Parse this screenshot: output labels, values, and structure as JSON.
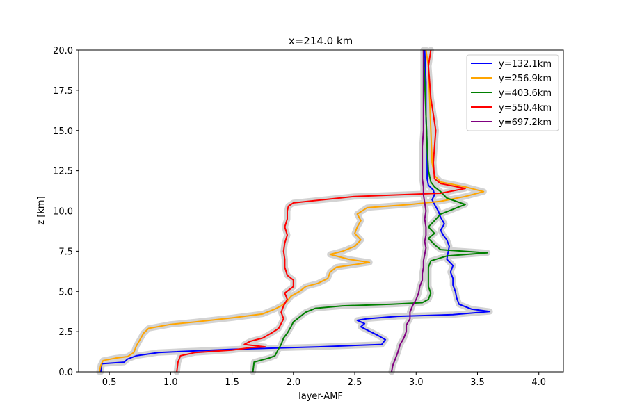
{
  "chart_data": {
    "type": "line",
    "title": "x=214.0 km",
    "xlabel": "layer-AMF",
    "ylabel": "z [km]",
    "xlim": [
      0.25,
      4.2
    ],
    "ylim": [
      0,
      20
    ],
    "xticks": [
      0.5,
      1.0,
      1.5,
      2.0,
      2.5,
      3.0,
      3.5,
      4.0
    ],
    "xtick_labels": [
      "0.5",
      "1.0",
      "1.5",
      "2.0",
      "2.5",
      "3.0",
      "3.5",
      "4.0"
    ],
    "yticks": [
      0,
      2.5,
      5,
      7.5,
      10,
      12.5,
      15,
      17.5,
      20
    ],
    "ytick_labels": [
      "0.0",
      "2.5",
      "5.0",
      "7.5",
      "10.0",
      "12.5",
      "15.0",
      "17.5",
      "20.0"
    ],
    "grid": false,
    "legend_position": "upper right",
    "uncertainty_band_color": "#d3d3d3",
    "series": [
      {
        "name": "y=132.1km",
        "color": "#0000ff",
        "points": [
          [
            0.43,
            0
          ],
          [
            0.44,
            0.5
          ],
          [
            0.62,
            0.6
          ],
          [
            0.65,
            0.8
          ],
          [
            0.72,
            1.0
          ],
          [
            0.9,
            1.2
          ],
          [
            1.5,
            1.4
          ],
          [
            2.2,
            1.55
          ],
          [
            2.72,
            1.7
          ],
          [
            2.75,
            2.0
          ],
          [
            2.68,
            2.3
          ],
          [
            2.6,
            2.6
          ],
          [
            2.55,
            2.8
          ],
          [
            2.58,
            3.0
          ],
          [
            2.52,
            3.2
          ],
          [
            2.6,
            3.3
          ],
          [
            2.85,
            3.45
          ],
          [
            3.3,
            3.55
          ],
          [
            3.6,
            3.75
          ],
          [
            3.45,
            3.9
          ],
          [
            3.35,
            4.2
          ],
          [
            3.33,
            4.6
          ],
          [
            3.32,
            5.0
          ],
          [
            3.3,
            5.4
          ],
          [
            3.3,
            5.8
          ],
          [
            3.28,
            6.2
          ],
          [
            3.3,
            6.6
          ],
          [
            3.25,
            7.0
          ],
          [
            3.26,
            7.4
          ],
          [
            3.27,
            7.8
          ],
          [
            3.25,
            8.2
          ],
          [
            3.22,
            8.5
          ],
          [
            3.2,
            8.8
          ],
          [
            3.23,
            9.2
          ],
          [
            3.2,
            9.6
          ],
          [
            3.18,
            10.0
          ],
          [
            3.15,
            10.4
          ],
          [
            3.13,
            10.7
          ],
          [
            3.15,
            11.0
          ],
          [
            3.14,
            11.3
          ],
          [
            3.1,
            11.6
          ],
          [
            3.09,
            12.0
          ],
          [
            3.09,
            14.0
          ],
          [
            3.08,
            16.0
          ],
          [
            3.08,
            18.0
          ],
          [
            3.07,
            20.0
          ]
        ]
      },
      {
        "name": "y=256.9km",
        "color": "#ffa500",
        "points": [
          [
            0.42,
            0
          ],
          [
            0.43,
            0.4
          ],
          [
            0.45,
            0.7
          ],
          [
            0.55,
            0.85
          ],
          [
            0.65,
            0.95
          ],
          [
            0.7,
            1.2
          ],
          [
            0.72,
            1.6
          ],
          [
            0.75,
            2.0
          ],
          [
            0.78,
            2.4
          ],
          [
            0.82,
            2.7
          ],
          [
            1.0,
            2.95
          ],
          [
            1.2,
            3.1
          ],
          [
            1.5,
            3.35
          ],
          [
            1.75,
            3.6
          ],
          [
            1.85,
            3.9
          ],
          [
            1.9,
            4.1
          ],
          [
            1.95,
            4.4
          ],
          [
            1.98,
            4.7
          ],
          [
            2.05,
            5.0
          ],
          [
            2.1,
            5.3
          ],
          [
            2.2,
            5.5
          ],
          [
            2.28,
            5.8
          ],
          [
            2.3,
            6.2
          ],
          [
            2.35,
            6.5
          ],
          [
            2.62,
            6.8
          ],
          [
            2.45,
            7.0
          ],
          [
            2.3,
            7.3
          ],
          [
            2.4,
            7.5
          ],
          [
            2.5,
            7.8
          ],
          [
            2.55,
            8.2
          ],
          [
            2.5,
            8.6
          ],
          [
            2.52,
            9.0
          ],
          [
            2.55,
            9.4
          ],
          [
            2.52,
            9.8
          ],
          [
            2.6,
            10.2
          ],
          [
            2.95,
            10.4
          ],
          [
            3.2,
            10.6
          ],
          [
            3.4,
            10.9
          ],
          [
            3.55,
            11.2
          ],
          [
            3.4,
            11.5
          ],
          [
            3.2,
            11.8
          ],
          [
            3.15,
            12.2
          ],
          [
            3.13,
            13.0
          ],
          [
            3.12,
            15.0
          ],
          [
            3.11,
            17.0
          ],
          [
            3.1,
            19.0
          ],
          [
            3.08,
            20.0
          ]
        ]
      },
      {
        "name": "y=403.6km",
        "color": "#008000",
        "points": [
          [
            1.67,
            0
          ],
          [
            1.68,
            0.6
          ],
          [
            1.75,
            0.75
          ],
          [
            1.8,
            0.85
          ],
          [
            1.85,
            1.0
          ],
          [
            1.87,
            1.3
          ],
          [
            1.9,
            1.7
          ],
          [
            1.92,
            2.1
          ],
          [
            1.95,
            2.4
          ],
          [
            1.98,
            2.8
          ],
          [
            2.0,
            3.1
          ],
          [
            2.05,
            3.4
          ],
          [
            2.1,
            3.7
          ],
          [
            2.18,
            3.95
          ],
          [
            2.4,
            4.1
          ],
          [
            2.8,
            4.2
          ],
          [
            3.05,
            4.3
          ],
          [
            3.1,
            4.5
          ],
          [
            3.12,
            4.9
          ],
          [
            3.1,
            5.3
          ],
          [
            3.1,
            5.6
          ],
          [
            3.1,
            6.0
          ],
          [
            3.1,
            6.5
          ],
          [
            3.12,
            6.9
          ],
          [
            3.25,
            7.2
          ],
          [
            3.58,
            7.4
          ],
          [
            3.2,
            7.6
          ],
          [
            3.15,
            7.9
          ],
          [
            3.1,
            8.3
          ],
          [
            3.15,
            8.6
          ],
          [
            3.1,
            9.0
          ],
          [
            3.15,
            9.4
          ],
          [
            3.2,
            9.8
          ],
          [
            3.3,
            10.1
          ],
          [
            3.4,
            10.4
          ],
          [
            3.25,
            10.8
          ],
          [
            3.2,
            11.2
          ],
          [
            3.15,
            11.5
          ],
          [
            3.12,
            11.8
          ],
          [
            3.1,
            12.5
          ],
          [
            3.09,
            14.0
          ],
          [
            3.08,
            16.0
          ],
          [
            3.07,
            18.0
          ],
          [
            3.06,
            20.0
          ]
        ]
      },
      {
        "name": "y=550.4km",
        "color": "#ff0000",
        "points": [
          [
            1.05,
            0
          ],
          [
            1.06,
            0.6
          ],
          [
            1.08,
            1.0
          ],
          [
            1.2,
            1.2
          ],
          [
            1.5,
            1.35
          ],
          [
            1.65,
            1.5
          ],
          [
            1.77,
            1.55
          ],
          [
            1.6,
            1.7
          ],
          [
            1.65,
            1.9
          ],
          [
            1.75,
            2.1
          ],
          [
            1.82,
            2.4
          ],
          [
            1.88,
            2.7
          ],
          [
            1.9,
            3.0
          ],
          [
            1.92,
            3.3
          ],
          [
            1.9,
            3.7
          ],
          [
            1.92,
            4.1
          ],
          [
            1.95,
            4.5
          ],
          [
            1.93,
            4.9
          ],
          [
            2.0,
            5.3
          ],
          [
            2.0,
            5.7
          ],
          [
            1.95,
            6.0
          ],
          [
            1.93,
            6.5
          ],
          [
            1.93,
            7.0
          ],
          [
            1.92,
            7.5
          ],
          [
            1.93,
            8.0
          ],
          [
            1.95,
            8.5
          ],
          [
            1.93,
            9.0
          ],
          [
            1.95,
            9.5
          ],
          [
            1.95,
            10.0
          ],
          [
            1.96,
            10.3
          ],
          [
            2.0,
            10.5
          ],
          [
            2.5,
            10.9
          ],
          [
            3.2,
            11.1
          ],
          [
            3.4,
            11.4
          ],
          [
            3.2,
            11.7
          ],
          [
            3.15,
            12.0
          ],
          [
            3.14,
            13.0
          ],
          [
            3.15,
            14.0
          ],
          [
            3.16,
            15.0
          ],
          [
            3.14,
            16.0
          ],
          [
            3.12,
            17.0
          ],
          [
            3.11,
            18.0
          ],
          [
            3.1,
            19.0
          ],
          [
            3.12,
            20.0
          ]
        ]
      },
      {
        "name": "y=697.2km",
        "color": "#800080",
        "points": [
          [
            2.8,
            0
          ],
          [
            2.81,
            0.4
          ],
          [
            2.83,
            0.8
          ],
          [
            2.85,
            1.2
          ],
          [
            2.87,
            1.7
          ],
          [
            2.9,
            2.1
          ],
          [
            2.92,
            2.5
          ],
          [
            2.92,
            2.9
          ],
          [
            2.95,
            3.3
          ],
          [
            2.95,
            3.7
          ],
          [
            2.97,
            4.1
          ],
          [
            3.0,
            4.5
          ],
          [
            3.02,
            4.9
          ],
          [
            3.03,
            5.3
          ],
          [
            3.05,
            5.7
          ],
          [
            3.05,
            6.1
          ],
          [
            3.06,
            6.5
          ],
          [
            3.06,
            6.9
          ],
          [
            3.07,
            7.3
          ],
          [
            3.08,
            7.7
          ],
          [
            3.07,
            8.1
          ],
          [
            3.08,
            8.5
          ],
          [
            3.08,
            9.0
          ],
          [
            3.07,
            9.5
          ],
          [
            3.08,
            10.0
          ],
          [
            3.07,
            10.5
          ],
          [
            3.06,
            11.0
          ],
          [
            3.06,
            11.5
          ],
          [
            3.05,
            12.0
          ],
          [
            3.05,
            13.0
          ],
          [
            3.05,
            14.0
          ],
          [
            3.06,
            15.0
          ],
          [
            3.06,
            16.0
          ],
          [
            3.06,
            17.0
          ],
          [
            3.06,
            18.0
          ],
          [
            3.06,
            19.0
          ],
          [
            3.06,
            20.0
          ]
        ]
      }
    ]
  }
}
